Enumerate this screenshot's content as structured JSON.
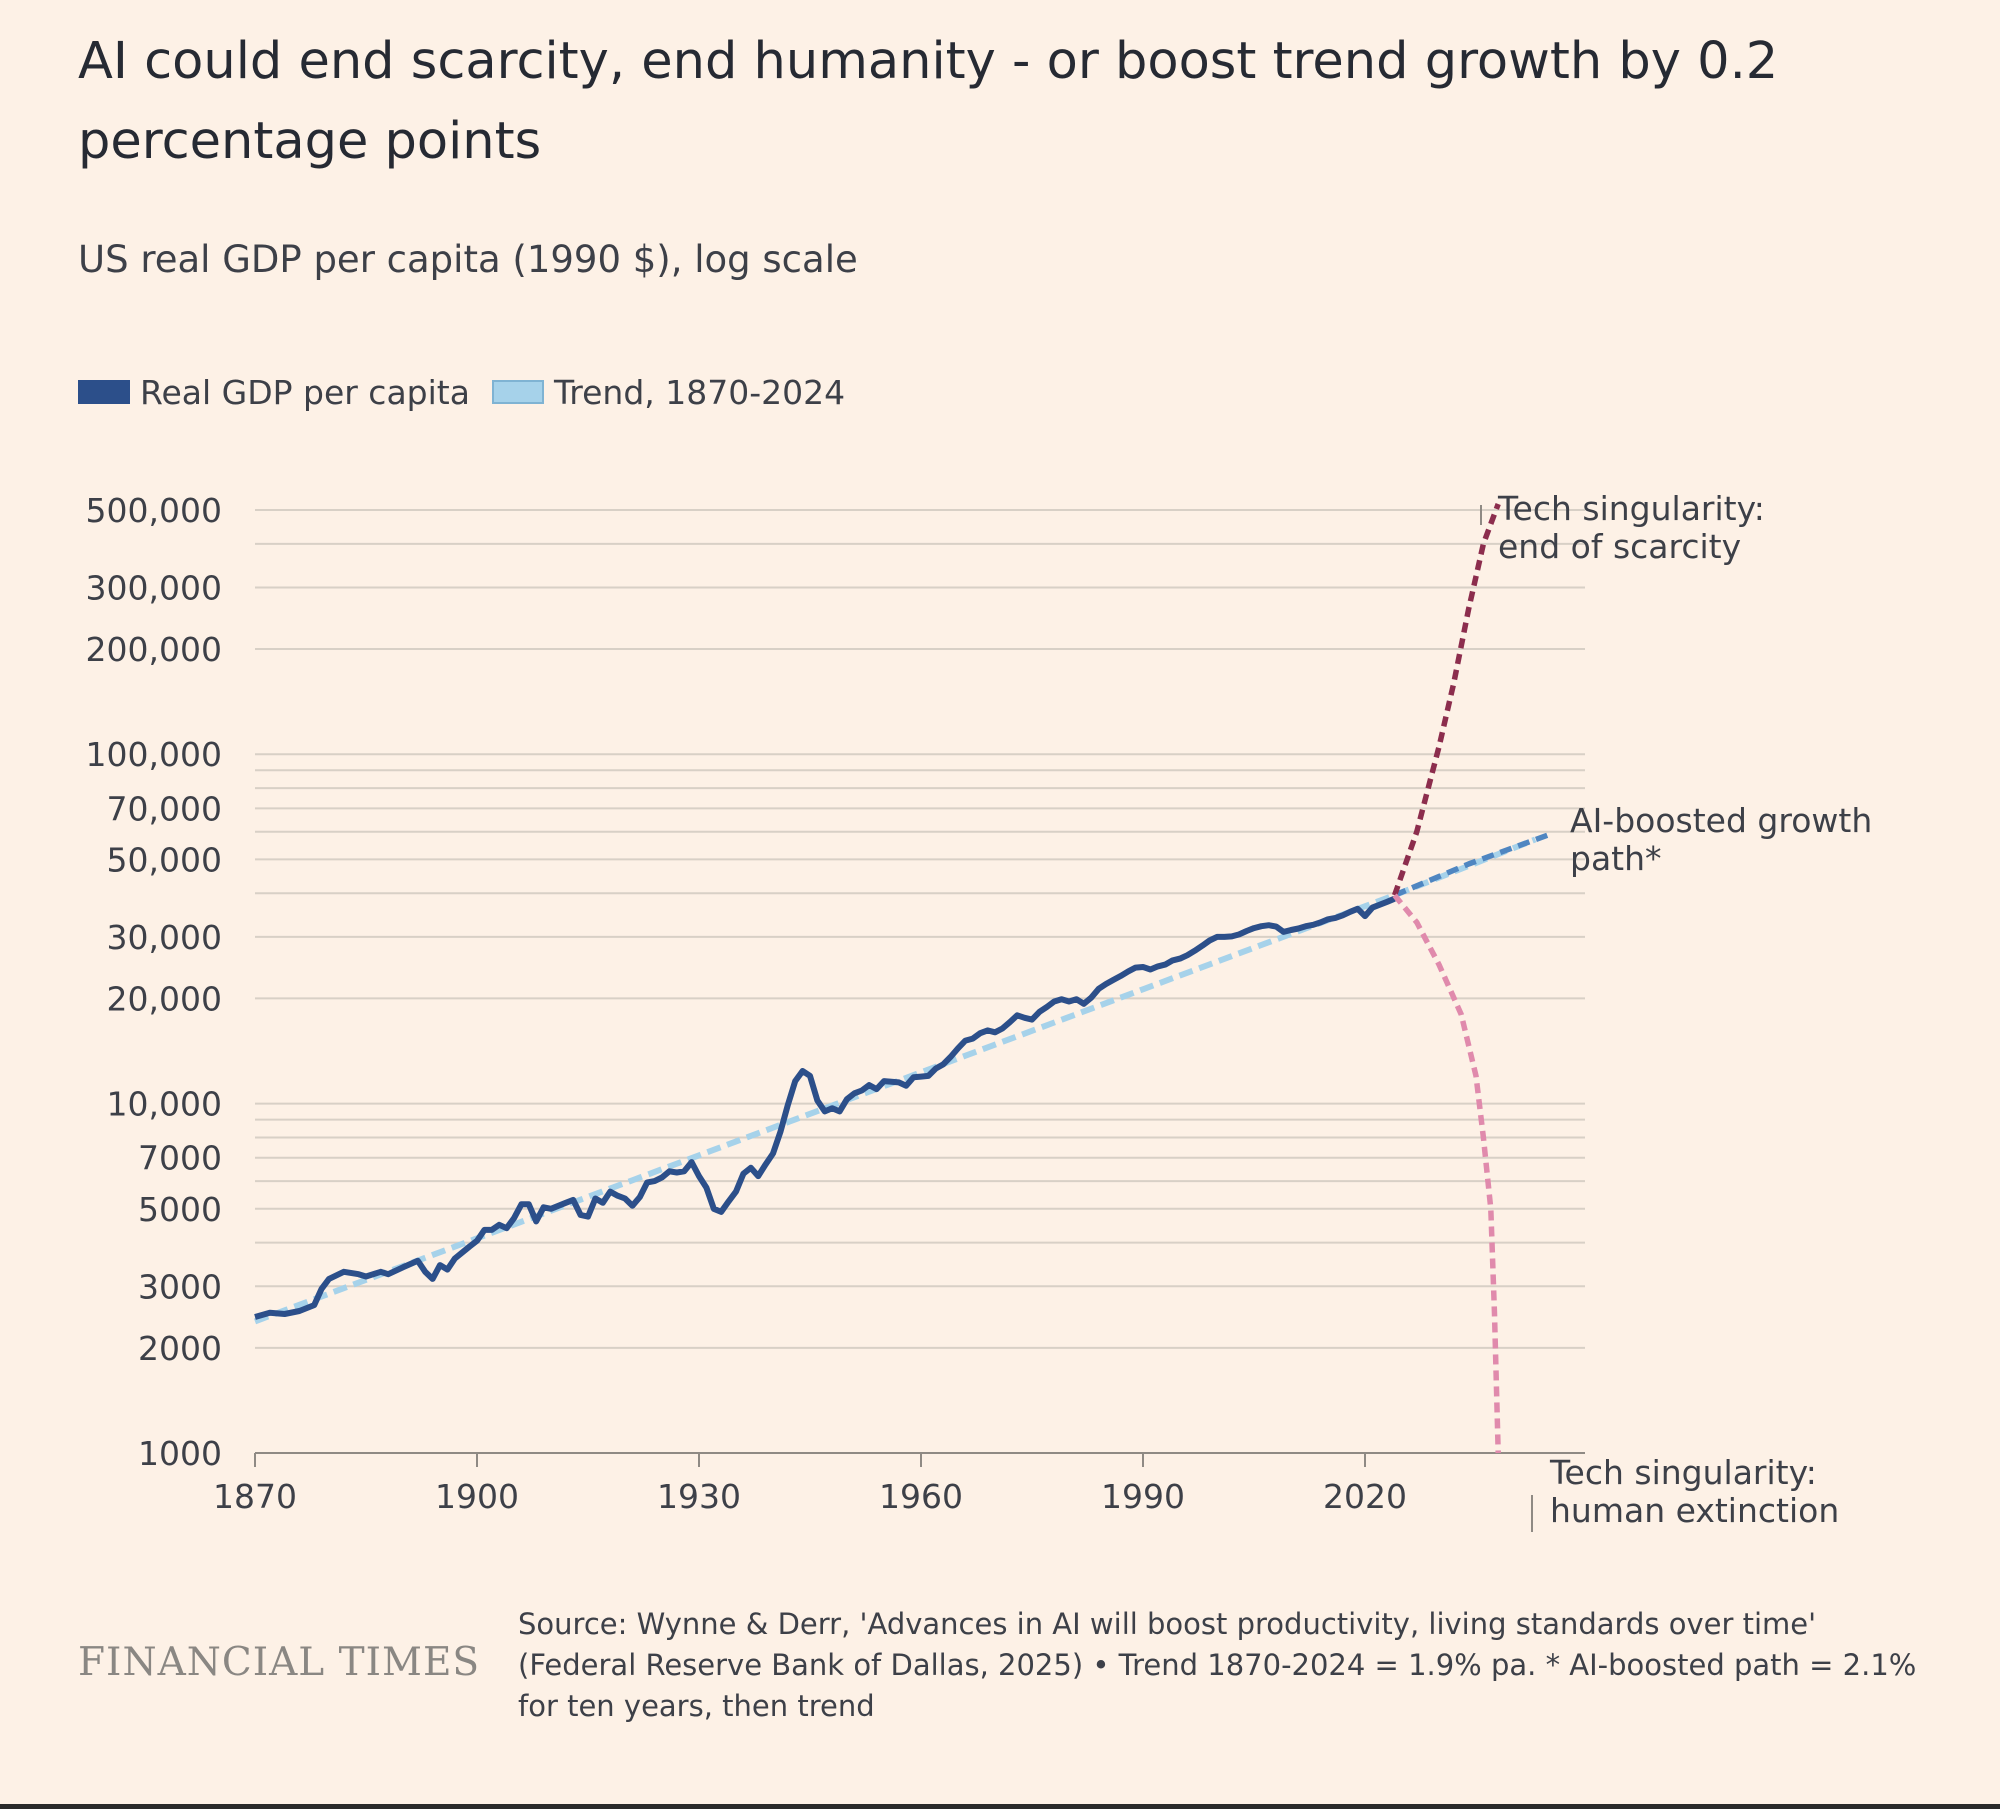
{
  "header": {
    "title": "AI could end scarcity, end humanity - or boost trend growth by 0.2 percentage points",
    "subtitle": "US real GDP per capita (1990 $), log scale"
  },
  "legend": [
    {
      "label": "Real GDP per capita",
      "color": "#2c4f8a"
    },
    {
      "label": "Trend, 1870-2024",
      "color": "#a6d2ea"
    }
  ],
  "footer": {
    "brand": "FINANCIAL TIMES",
    "source": "Source: Wynne & Derr, 'Advances in AI will boost productivity, living standards over time' (Federal Reserve Bank of Dallas, 2025) • Trend 1870-2024 = 1.9% pa. * AI-boosted path = 2.1% for ten years, then trend"
  },
  "chart_data": {
    "type": "line",
    "title": "AI could end scarcity, end humanity - or boost trend growth by 0.2 percentage points",
    "subtitle": "US real GDP per capita (1990 $), log scale",
    "y_scale": "log",
    "ylim": [
      1000,
      500000
    ],
    "xlim": [
      1870,
      2050
    ],
    "x_ticks": [
      1870,
      1900,
      1930,
      1960,
      1990,
      2020
    ],
    "x_tick_labels": [
      "1870",
      "1900",
      "1930",
      "1960",
      "1990",
      "2020"
    ],
    "y_tick_labels": [
      {
        "value": 500000,
        "label": "500,000"
      },
      {
        "value": 300000,
        "label": "300,000"
      },
      {
        "value": 200000,
        "label": "200,000"
      },
      {
        "value": 100000,
        "label": "100,000"
      },
      {
        "value": 70000,
        "label": "70,000"
      },
      {
        "value": 50000,
        "label": "50,000"
      },
      {
        "value": 30000,
        "label": "30,000"
      },
      {
        "value": 20000,
        "label": "20,000"
      },
      {
        "value": 10000,
        "label": "10,000"
      },
      {
        "value": 7000,
        "label": "7000"
      },
      {
        "value": 5000,
        "label": "5000"
      },
      {
        "value": 3000,
        "label": "3000"
      },
      {
        "value": 2000,
        "label": "2000"
      },
      {
        "value": 1000,
        "label": "1000"
      }
    ],
    "gridlines": [
      500000,
      400000,
      300000,
      200000,
      100000,
      90000,
      80000,
      70000,
      60000,
      50000,
      40000,
      30000,
      20000,
      10000,
      9000,
      8000,
      7000,
      6000,
      5000,
      4000,
      3000,
      2000
    ],
    "grid": true,
    "legend_position": "top-left",
    "series": [
      {
        "name": "Real GDP per capita",
        "color": "#2c4f8a",
        "style": "solid",
        "points": [
          [
            1870,
            2450
          ],
          [
            1872,
            2520
          ],
          [
            1874,
            2500
          ],
          [
            1876,
            2550
          ],
          [
            1878,
            2650
          ],
          [
            1879,
            2950
          ],
          [
            1880,
            3150
          ],
          [
            1882,
            3300
          ],
          [
            1884,
            3250
          ],
          [
            1885,
            3200
          ],
          [
            1887,
            3300
          ],
          [
            1888,
            3250
          ],
          [
            1890,
            3400
          ],
          [
            1892,
            3550
          ],
          [
            1893,
            3300
          ],
          [
            1894,
            3150
          ],
          [
            1895,
            3450
          ],
          [
            1896,
            3350
          ],
          [
            1897,
            3600
          ],
          [
            1899,
            3900
          ],
          [
            1900,
            4050
          ],
          [
            1901,
            4350
          ],
          [
            1902,
            4350
          ],
          [
            1903,
            4500
          ],
          [
            1904,
            4400
          ],
          [
            1905,
            4700
          ],
          [
            1906,
            5150
          ],
          [
            1907,
            5150
          ],
          [
            1908,
            4600
          ],
          [
            1909,
            5050
          ],
          [
            1910,
            5000
          ],
          [
            1912,
            5200
          ],
          [
            1913,
            5300
          ],
          [
            1914,
            4800
          ],
          [
            1915,
            4750
          ],
          [
            1916,
            5350
          ],
          [
            1917,
            5200
          ],
          [
            1918,
            5600
          ],
          [
            1919,
            5450
          ],
          [
            1920,
            5350
          ],
          [
            1921,
            5100
          ],
          [
            1922,
            5400
          ],
          [
            1923,
            5950
          ],
          [
            1924,
            6000
          ],
          [
            1925,
            6150
          ],
          [
            1926,
            6400
          ],
          [
            1927,
            6350
          ],
          [
            1928,
            6400
          ],
          [
            1929,
            6800
          ],
          [
            1930,
            6200
          ],
          [
            1931,
            5750
          ],
          [
            1932,
            5000
          ],
          [
            1933,
            4900
          ],
          [
            1934,
            5250
          ],
          [
            1935,
            5600
          ],
          [
            1936,
            6300
          ],
          [
            1937,
            6550
          ],
          [
            1938,
            6200
          ],
          [
            1939,
            6700
          ],
          [
            1940,
            7200
          ],
          [
            1941,
            8300
          ],
          [
            1942,
            9900
          ],
          [
            1943,
            11600
          ],
          [
            1944,
            12400
          ],
          [
            1945,
            12000
          ],
          [
            1946,
            10200
          ],
          [
            1947,
            9500
          ],
          [
            1948,
            9700
          ],
          [
            1949,
            9500
          ],
          [
            1950,
            10300
          ],
          [
            1951,
            10700
          ],
          [
            1952,
            10900
          ],
          [
            1953,
            11300
          ],
          [
            1954,
            11000
          ],
          [
            1955,
            11600
          ],
          [
            1956,
            11550
          ],
          [
            1957,
            11500
          ],
          [
            1958,
            11250
          ],
          [
            1959,
            11900
          ],
          [
            1960,
            11950
          ],
          [
            1961,
            12000
          ],
          [
            1962,
            12600
          ],
          [
            1963,
            12950
          ],
          [
            1964,
            13600
          ],
          [
            1965,
            14400
          ],
          [
            1966,
            15150
          ],
          [
            1967,
            15350
          ],
          [
            1968,
            15900
          ],
          [
            1969,
            16200
          ],
          [
            1970,
            16000
          ],
          [
            1971,
            16400
          ],
          [
            1972,
            17100
          ],
          [
            1973,
            17900
          ],
          [
            1974,
            17600
          ],
          [
            1975,
            17400
          ],
          [
            1976,
            18300
          ],
          [
            1977,
            18900
          ],
          [
            1978,
            19600
          ],
          [
            1979,
            19900
          ],
          [
            1980,
            19600
          ],
          [
            1981,
            19900
          ],
          [
            1982,
            19300
          ],
          [
            1983,
            20100
          ],
          [
            1984,
            21300
          ],
          [
            1985,
            22000
          ],
          [
            1986,
            22600
          ],
          [
            1987,
            23200
          ],
          [
            1988,
            23900
          ],
          [
            1989,
            24500
          ],
          [
            1990,
            24600
          ],
          [
            1991,
            24200
          ],
          [
            1992,
            24700
          ],
          [
            1993,
            25000
          ],
          [
            1994,
            25700
          ],
          [
            1995,
            26000
          ],
          [
            1996,
            26600
          ],
          [
            1997,
            27400
          ],
          [
            1998,
            28300
          ],
          [
            1999,
            29300
          ],
          [
            2000,
            30000
          ],
          [
            2001,
            30000
          ],
          [
            2002,
            30100
          ],
          [
            2003,
            30500
          ],
          [
            2004,
            31200
          ],
          [
            2005,
            31800
          ],
          [
            2006,
            32200
          ],
          [
            2007,
            32400
          ],
          [
            2008,
            32100
          ],
          [
            2009,
            31000
          ],
          [
            2010,
            31400
          ],
          [
            2011,
            31700
          ],
          [
            2012,
            32200
          ],
          [
            2013,
            32500
          ],
          [
            2014,
            33000
          ],
          [
            2015,
            33700
          ],
          [
            2016,
            34000
          ],
          [
            2017,
            34600
          ],
          [
            2018,
            35400
          ],
          [
            2019,
            36100
          ],
          [
            2020,
            34400
          ],
          [
            2021,
            36400
          ],
          [
            2022,
            37100
          ],
          [
            2023,
            37800
          ],
          [
            2024,
            38600
          ]
        ]
      },
      {
        "name": "Trend, 1870-2024",
        "color": "#a6d2ea",
        "style": "dashed",
        "points": [
          [
            1870,
            2380
          ],
          [
            2024,
            39500
          ],
          [
            2043,
            57000
          ]
        ]
      },
      {
        "name": "AI-boosted growth path*",
        "color": "#4f86c1",
        "style": "dashed",
        "points": [
          [
            2024,
            39500
          ],
          [
            2034,
            48500
          ],
          [
            2045,
            59000
          ]
        ]
      },
      {
        "name": "Tech singularity: end of scarcity",
        "color": "#8c2d4d",
        "style": "dashed",
        "points": [
          [
            2024,
            39500
          ],
          [
            2027,
            60000
          ],
          [
            2030,
            105000
          ],
          [
            2032,
            160000
          ],
          [
            2034,
            260000
          ],
          [
            2036,
            400000
          ],
          [
            2038,
            520000
          ]
        ]
      },
      {
        "name": "Tech singularity: human extinction",
        "color": "#e08aac",
        "style": "dashed",
        "points": [
          [
            2024,
            39500
          ],
          [
            2027,
            33000
          ],
          [
            2030,
            25000
          ],
          [
            2033,
            18000
          ],
          [
            2035,
            12000
          ],
          [
            2036,
            8000
          ],
          [
            2037,
            5000
          ],
          [
            2037.5,
            2500
          ],
          [
            2038,
            1000
          ]
        ]
      }
    ],
    "annotations": [
      {
        "lines": [
          "Tech singularity:",
          "end of scarcity"
        ]
      },
      {
        "lines": [
          "AI-boosted growth",
          "path*"
        ]
      },
      {
        "lines": [
          "Tech singularity:",
          "human extinction"
        ]
      }
    ]
  }
}
